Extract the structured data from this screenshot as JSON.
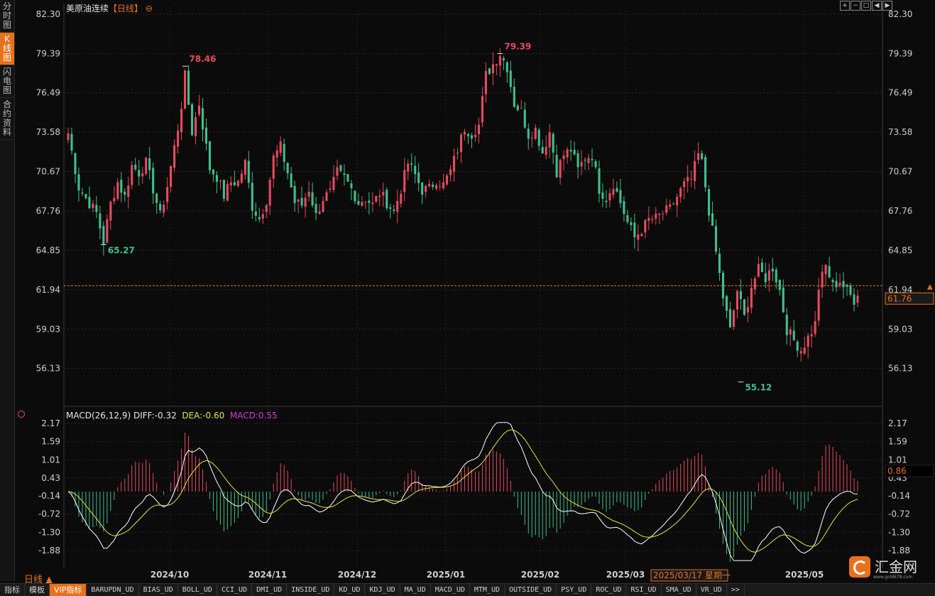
{
  "left_tabs": [
    {
      "label": "分时图",
      "active": false
    },
    {
      "label": "K线图",
      "active": true
    },
    {
      "label": "闪电图",
      "active": false
    },
    {
      "label": "合约资料",
      "active": false
    }
  ],
  "top_icons": [
    "plus",
    "minus",
    "full",
    "left",
    "right"
  ],
  "header": {
    "title": "美原油连续",
    "period_bracket": "【日线】",
    "settings_glyph": "⊖"
  },
  "macd_legend": {
    "name": "MACD(26,12,9)",
    "diff": "DIFF:-0.32",
    "dea": "DEA:-0.60",
    "macd": "MACD:0.55"
  },
  "period_label": "日线 ▲",
  "bottom_tabs": [
    "指标",
    "模板",
    "VIP指标",
    "BARUPDN_UD",
    "BIAS_UD",
    "BOLL_UD",
    "CCI_UD",
    "DMI_UD",
    "INSIDE_UD",
    "KD_UD",
    "KDJ_UD",
    "MA_UD",
    "MACD_UD",
    "MTM_UD",
    "OUTSIDE_UD",
    "PSY_UD",
    "ROC_UD",
    "RSI_UD",
    "SMA_UD",
    "VR_UD",
    ">>"
  ],
  "logo": {
    "text": "汇金网",
    "sub": "www.gold678.com"
  },
  "colors": {
    "up": "#e84a5f",
    "down": "#3fbf8f",
    "diff": "#ffffff",
    "dea": "#e5e23a",
    "macd": "#d33bd3",
    "current": "#e8711a",
    "axis": "#cfcfcf"
  },
  "chart_data": [
    {
      "type": "candlestick",
      "title": "美原油连续【日线】",
      "y_ticks": [
        82.3,
        79.39,
        76.49,
        73.58,
        70.67,
        67.76,
        64.85,
        61.94,
        59.03,
        56.13
      ],
      "ylim": [
        53.2,
        82.3
      ],
      "x_ticks": [
        "2024/10",
        "2024/11",
        "2024/12",
        "2025/01",
        "2025/02",
        "2025/03",
        "2025/05"
      ],
      "cursor_date": "2025/03/17 星期一",
      "current_price": 61.76,
      "annotations": [
        {
          "label": "78.46"
        },
        {
          "label": "79.39"
        },
        {
          "label": "65.27"
        },
        {
          "label": "55.12"
        }
      ],
      "keypoints": [
        [
          0,
          73.5
        ],
        [
          3,
          69.5
        ],
        [
          5,
          68.7
        ],
        [
          8,
          67.6
        ],
        [
          10,
          65.5
        ],
        [
          12,
          68.3
        ],
        [
          14,
          69.9
        ],
        [
          16,
          68.8
        ],
        [
          18,
          71.1
        ],
        [
          20,
          70.6
        ],
        [
          22,
          71.3
        ],
        [
          24,
          69.4
        ],
        [
          26,
          67.4
        ],
        [
          28,
          69.6
        ],
        [
          31,
          73.9
        ],
        [
          32,
          75.6
        ],
        [
          33,
          77.7
        ],
        [
          35,
          73.6
        ],
        [
          37,
          75.7
        ],
        [
          40,
          70.9
        ],
        [
          42,
          70.3
        ],
        [
          44,
          68.9
        ],
        [
          46,
          69.9
        ],
        [
          48,
          69.9
        ],
        [
          50,
          71.3
        ],
        [
          52,
          68.1
        ],
        [
          54,
          67.2
        ],
        [
          56,
          68.6
        ],
        [
          58,
          71.7
        ],
        [
          60,
          72.5
        ],
        [
          62,
          70.6
        ],
        [
          64,
          68.4
        ],
        [
          66,
          68.2
        ],
        [
          68,
          69.4
        ],
        [
          70,
          67.4
        ],
        [
          72,
          68.7
        ],
        [
          74,
          69.1
        ],
        [
          76,
          70.6
        ],
        [
          78,
          70.2
        ],
        [
          80,
          69.4
        ],
        [
          82,
          68.4
        ],
        [
          84,
          68.7
        ],
        [
          86,
          68.2
        ],
        [
          88,
          69.1
        ],
        [
          90,
          68.4
        ],
        [
          92,
          67.7
        ],
        [
          94,
          69.4
        ],
        [
          96,
          71.3
        ],
        [
          98,
          70.4
        ],
        [
          100,
          69.3
        ],
        [
          102,
          69.4
        ],
        [
          104,
          70.1
        ],
        [
          106,
          69.7
        ],
        [
          108,
          70.7
        ],
        [
          110,
          72.3
        ],
        [
          112,
          73.9
        ],
        [
          114,
          73.5
        ],
        [
          116,
          74.1
        ],
        [
          118,
          77.8
        ],
        [
          120,
          78.6
        ],
        [
          122,
          79.4
        ],
        [
          124,
          78.4
        ],
        [
          126,
          75.7
        ],
        [
          128,
          75.1
        ],
        [
          130,
          73.4
        ],
        [
          132,
          73.8
        ],
        [
          134,
          72.1
        ],
        [
          136,
          73.6
        ],
        [
          138,
          70.7
        ],
        [
          140,
          71.9
        ],
        [
          142,
          72.3
        ],
        [
          144,
          70.8
        ],
        [
          146,
          71.7
        ],
        [
          148,
          71.9
        ],
        [
          150,
          69.4
        ],
        [
          152,
          68.7
        ],
        [
          154,
          69.8
        ],
        [
          156,
          68.4
        ],
        [
          158,
          66.9
        ],
        [
          160,
          65.8
        ],
        [
          162,
          66.4
        ],
        [
          164,
          67.1
        ],
        [
          166,
          67.2
        ],
        [
          168,
          67.6
        ],
        [
          170,
          67.9
        ],
        [
          172,
          68.8
        ],
        [
          174,
          69.7
        ],
        [
          176,
          70.1
        ],
        [
          178,
          71.9
        ],
        [
          179,
          71.3
        ],
        [
          181,
          67.8
        ],
        [
          183,
          64.7
        ],
        [
          185,
          61.4
        ],
        [
          187,
          58.9
        ],
        [
          189,
          61.9
        ],
        [
          191,
          59.9
        ],
        [
          193,
          62.2
        ],
        [
          195,
          63.4
        ],
        [
          197,
          62.8
        ],
        [
          199,
          63.6
        ],
        [
          201,
          61.9
        ],
        [
          203,
          59.0
        ],
        [
          205,
          58.2
        ],
        [
          207,
          57.5
        ],
        [
          209,
          58.4
        ],
        [
          211,
          59.4
        ],
        [
          212,
          62.1
        ],
        [
          214,
          63.7
        ],
        [
          216,
          62.2
        ],
        [
          218,
          62.6
        ],
        [
          220,
          61.8
        ],
        [
          222,
          61.2
        ],
        [
          223,
          61.8
        ]
      ],
      "n_candles": 224
    },
    {
      "type": "macd",
      "title": "MACD(26,12,9)",
      "y_ticks": [
        2.17,
        1.59,
        1.01,
        0.43,
        -0.14,
        -0.72,
        -1.3,
        -1.88
      ],
      "ylim": [
        -2.2,
        2.2
      ],
      "current_value": 0.86,
      "diff": -0.32,
      "dea": -0.6,
      "macd": 0.55
    }
  ]
}
